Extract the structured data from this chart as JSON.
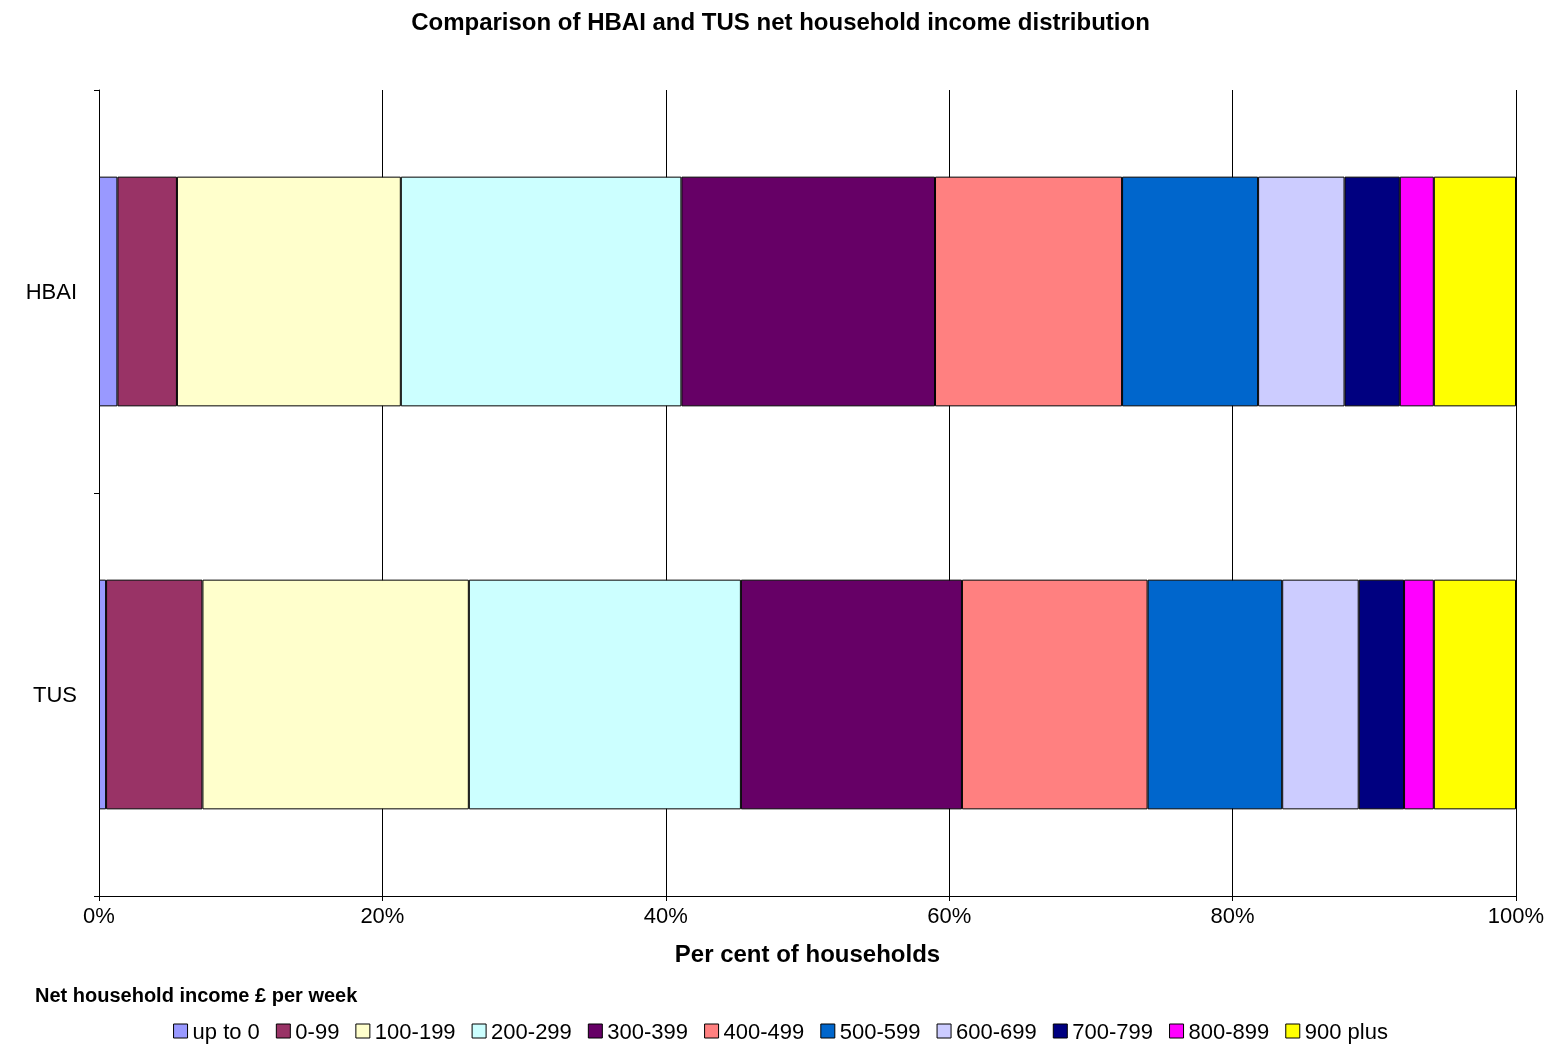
{
  "chart_data": {
    "type": "bar",
    "title": "Comparison of HBAI and TUS net household income distribution",
    "xlabel": "Per cent of households",
    "legend_title": "Net household income £ per week",
    "orientation": "horizontal",
    "stacked": true,
    "categories": [
      "HBAI",
      "TUS"
    ],
    "series": [
      {
        "name": "up to 0",
        "color": "#9999ff",
        "values": [
          1.3,
          0.5
        ]
      },
      {
        "name": "0-99",
        "color": "#993366",
        "values": [
          4.2,
          6.8
        ]
      },
      {
        "name": "100-199",
        "color": "#ffffcc",
        "values": [
          15.8,
          18.8
        ]
      },
      {
        "name": "200-299",
        "color": "#ccffff",
        "values": [
          19.8,
          19.2
        ]
      },
      {
        "name": "300-399",
        "color": "#660066",
        "values": [
          17.9,
          15.6
        ]
      },
      {
        "name": "400-499",
        "color": "#ff8080",
        "values": [
          13.2,
          13.1
        ]
      },
      {
        "name": "500-599",
        "color": "#0066cc",
        "values": [
          9.6,
          9.5
        ]
      },
      {
        "name": "600-699",
        "color": "#ccccff",
        "values": [
          6.1,
          5.4
        ]
      },
      {
        "name": "700-799",
        "color": "#000080",
        "values": [
          3.9,
          3.2
        ]
      },
      {
        "name": "800-899",
        "color": "#ff00ff",
        "values": [
          2.4,
          2.1
        ]
      },
      {
        "name": "900 plus",
        "color": "#ffff00",
        "values": [
          5.8,
          5.8
        ]
      }
    ],
    "xlim": [
      0,
      100
    ],
    "xticks": [
      {
        "value": 0,
        "label": "0%"
      },
      {
        "value": 20,
        "label": "20%"
      },
      {
        "value": 40,
        "label": "40%"
      },
      {
        "value": 60,
        "label": "60%"
      },
      {
        "value": 80,
        "label": "80%"
      },
      {
        "value": 100,
        "label": "100%"
      }
    ],
    "grid": "x",
    "legend": "bottom"
  }
}
